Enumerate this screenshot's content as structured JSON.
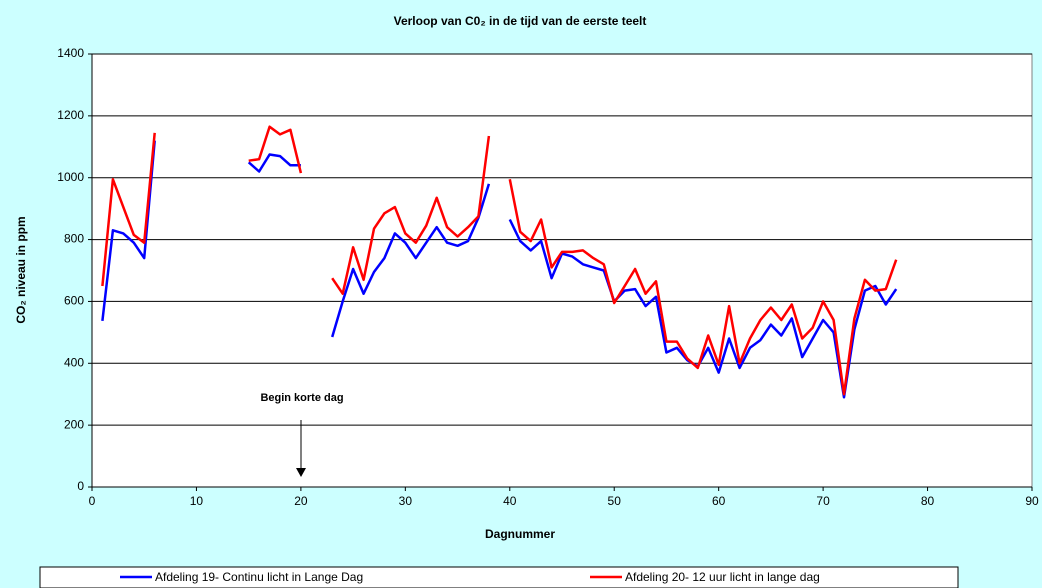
{
  "chart_data": {
    "type": "line",
    "title": "Verloop van C0₂ in de tijd van de eerste teelt",
    "x_label": "Dagnummer",
    "y_label": "CO₂ niveau in ppm",
    "annotation": "Begin korte dag",
    "x": [
      1,
      2,
      3,
      4,
      5,
      6,
      7,
      8,
      9,
      10,
      11,
      12,
      13,
      14,
      15,
      16,
      17,
      18,
      19,
      20,
      21,
      22,
      23,
      24,
      25,
      26,
      27,
      28,
      29,
      30,
      31,
      32,
      33,
      34,
      35,
      36,
      37,
      38,
      39,
      40,
      41,
      42,
      43,
      44,
      45,
      46,
      47,
      48,
      49,
      50,
      51,
      52,
      53,
      54,
      55,
      56,
      57,
      58,
      59,
      60,
      61,
      62,
      63,
      64,
      65,
      66,
      67,
      68,
      69,
      70,
      71,
      72,
      73,
      74,
      75,
      76,
      77
    ],
    "series": [
      {
        "name": "Afdeling 19- Continu licht in Lange Dag",
        "color": "#0000ff",
        "values": [
          537,
          830,
          820,
          790,
          740,
          1120,
          null,
          null,
          null,
          null,
          null,
          null,
          null,
          null,
          1050,
          1020,
          1075,
          1070,
          1040,
          1040,
          null,
          null,
          485,
          600,
          705,
          625,
          695,
          740,
          820,
          790,
          740,
          790,
          840,
          790,
          780,
          795,
          870,
          980,
          null,
          865,
          795,
          765,
          795,
          675,
          755,
          745,
          720,
          710,
          700,
          600,
          635,
          640,
          585,
          615,
          435,
          450,
          410,
          390,
          450,
          370,
          480,
          385,
          450,
          475,
          525,
          490,
          545,
          420,
          480,
          540,
          500,
          290,
          510,
          635,
          650,
          590,
          640
        ]
      },
      {
        "name": "Afdeling 20- 12 uur licht in lange dag",
        "color": "#ff0000",
        "values": [
          650,
          995,
          905,
          815,
          790,
          1145,
          null,
          null,
          null,
          null,
          null,
          null,
          null,
          null,
          1055,
          1060,
          1165,
          1140,
          1155,
          1015,
          null,
          null,
          675,
          625,
          775,
          670,
          835,
          885,
          905,
          820,
          790,
          845,
          935,
          840,
          810,
          840,
          875,
          1135,
          null,
          995,
          825,
          795,
          865,
          710,
          760,
          760,
          765,
          740,
          720,
          595,
          650,
          705,
          625,
          665,
          470,
          470,
          415,
          385,
          490,
          395,
          585,
          400,
          480,
          540,
          580,
          540,
          590,
          480,
          515,
          600,
          540,
          300,
          545,
          670,
          635,
          640,
          735
        ]
      }
    ],
    "xlim": [
      0,
      90
    ],
    "xticks": [
      0,
      10,
      20,
      30,
      40,
      50,
      60,
      70,
      80,
      90
    ],
    "ylim": [
      0,
      1400
    ],
    "yticks": [
      0,
      200,
      400,
      600,
      800,
      1000,
      1200,
      1400
    ],
    "grid": true
  }
}
